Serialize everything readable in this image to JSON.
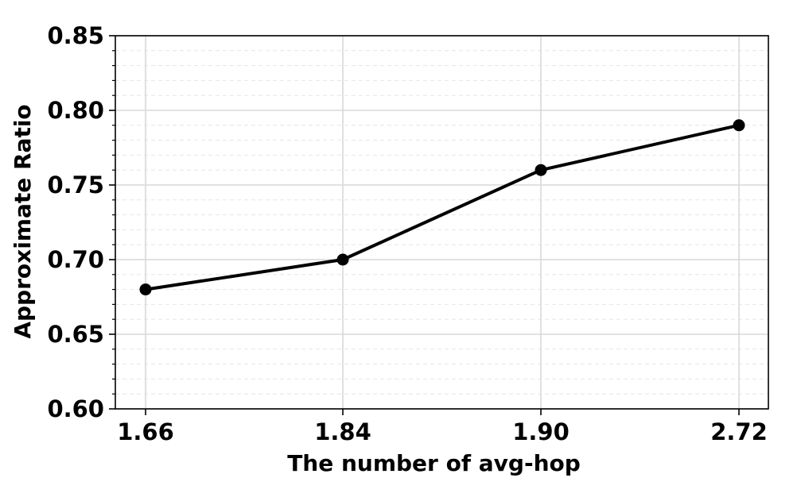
{
  "chart_data": {
    "type": "line",
    "categories": [
      "1.66",
      "1.84",
      "1.90",
      "2.72"
    ],
    "series": [
      {
        "values": [
          0.68,
          0.7,
          0.76,
          0.79
        ],
        "color": "#000000",
        "marker": "circle"
      }
    ],
    "title": "",
    "xlabel": "The number of avg-hop",
    "ylabel": "Approximate Ratio",
    "ylim": [
      0.6,
      0.85
    ],
    "yticks": [
      "0.60",
      "0.65",
      "0.70",
      "0.75",
      "0.80",
      "0.85"
    ],
    "grid": true,
    "minor_grid": true,
    "grid_color": "#d9d9d9",
    "line_color": "#000000"
  }
}
